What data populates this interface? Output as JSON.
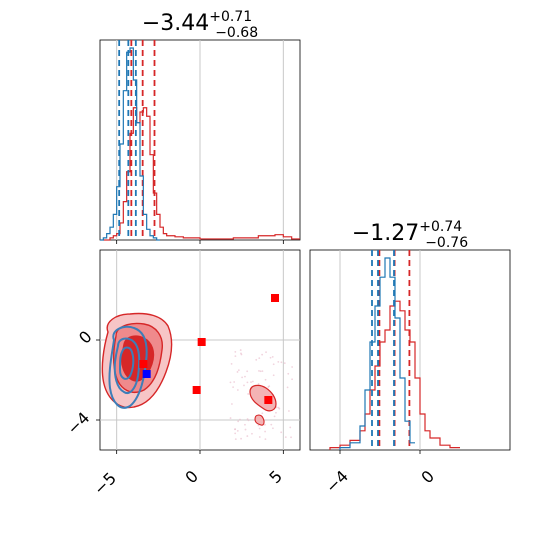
{
  "chart_data": {
    "type": "corner",
    "parameters": [
      {
        "title_main": "−3.44",
        "title_sup": "+0.71",
        "title_sub": "−0.68",
        "range": [
          -6,
          6
        ]
      },
      {
        "title_main": "−1.27",
        "title_sup": "+0.74",
        "title_sub": "−0.76",
        "range": [
          -5.5,
          4.5
        ]
      }
    ],
    "ticks": {
      "param1": [
        -5,
        0,
        5
      ],
      "param1_labels": [
        "−5",
        "0",
        "5"
      ],
      "param2": [
        -4,
        0
      ],
      "param2_labels": [
        "−4",
        "0"
      ]
    },
    "grid": true,
    "series": [
      {
        "color": "#d62728",
        "quantiles_p1": [
          -4.12,
          -3.44,
          -2.73
        ],
        "quantiles_p2": [
          -2.03,
          -1.27,
          -0.53
        ],
        "hist_p1": {
          "x": [
            -5.8,
            -5.6,
            -5.4,
            -5.2,
            -5.0,
            -4.8,
            -4.6,
            -4.4,
            -4.2,
            -4.0,
            -3.8,
            -3.6,
            -3.4,
            -3.2,
            -3.0,
            -2.8,
            -2.6,
            -2.4,
            -2.2,
            -2.0,
            -1.5,
            -1.0,
            0.0,
            1.0,
            2.0,
            3.0,
            3.5,
            4.0,
            4.5,
            5.0,
            5.5
          ],
          "y": [
            0,
            0,
            0.01,
            0.02,
            0.03,
            0.08,
            0.18,
            0.32,
            0.5,
            0.62,
            0.55,
            0.6,
            0.62,
            0.58,
            0.4,
            0.22,
            0.12,
            0.06,
            0.03,
            0.02,
            0.015,
            0.01,
            0.005,
            0.005,
            0.01,
            0.01,
            0.02,
            0.02,
            0.025,
            0.015,
            0.005
          ]
        },
        "hist_p2": {
          "x": [
            -4.5,
            -4.0,
            -3.5,
            -3.0,
            -2.75,
            -2.5,
            -2.25,
            -2.0,
            -1.75,
            -1.5,
            -1.25,
            -1.0,
            -0.75,
            -0.5,
            -0.25,
            0.0,
            0.25,
            0.5,
            1.0,
            1.5
          ],
          "y": [
            0.01,
            0.02,
            0.04,
            0.08,
            0.15,
            0.25,
            0.35,
            0.45,
            0.5,
            0.6,
            0.62,
            0.58,
            0.5,
            0.45,
            0.3,
            0.15,
            0.08,
            0.05,
            0.02,
            0.01
          ]
        },
        "points": [
          {
            "x": -3.4,
            "y": -1.2
          },
          {
            "x": 0.1,
            "y": -0.1
          },
          {
            "x": -0.2,
            "y": -2.5
          },
          {
            "x": 4.5,
            "y": 2.1
          },
          {
            "x": 4.1,
            "y": -3.0
          }
        ]
      },
      {
        "color": "#1f77b4",
        "quantiles_p1": [
          -4.85,
          -4.3,
          -3.85
        ],
        "quantiles_p2": [
          -2.4,
          -2.1,
          -1.3
        ],
        "hist_p1": {
          "x": [
            -6.0,
            -5.8,
            -5.6,
            -5.4,
            -5.2,
            -5.0,
            -4.8,
            -4.6,
            -4.4,
            -4.2,
            -4.0,
            -3.8,
            -3.6,
            -3.4,
            -3.2,
            -3.0,
            -2.8,
            -2.6
          ],
          "y": [
            0,
            0.01,
            0.03,
            0.06,
            0.12,
            0.25,
            0.45,
            0.7,
            0.88,
            0.9,
            0.75,
            0.55,
            0.3,
            0.12,
            0.05,
            0.02,
            0.01,
            0
          ]
        },
        "hist_p2": {
          "x": [
            -4.0,
            -3.5,
            -3.0,
            -2.75,
            -2.5,
            -2.25,
            -2.0,
            -1.75,
            -1.5,
            -1.25,
            -1.0,
            -0.75,
            -0.5
          ],
          "y": [
            0.01,
            0.03,
            0.1,
            0.25,
            0.45,
            0.6,
            0.72,
            0.8,
            0.72,
            0.55,
            0.3,
            0.12,
            0.03
          ]
        },
        "points": [
          {
            "x": -3.2,
            "y": -1.7
          }
        ]
      }
    ]
  }
}
